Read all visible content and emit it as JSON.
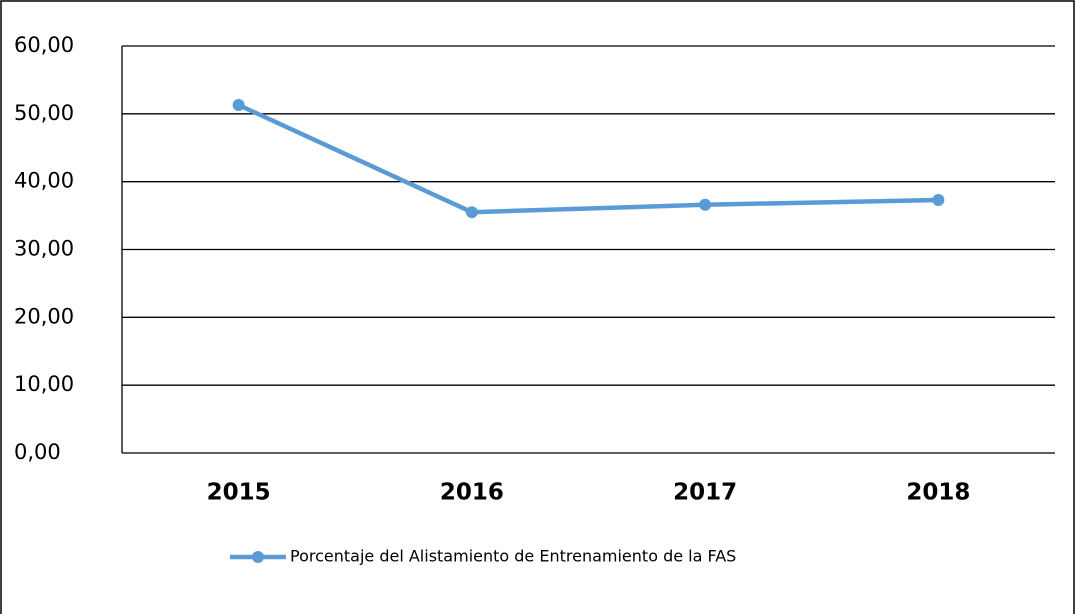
{
  "chart_data": {
    "type": "line",
    "categories": [
      "2015",
      "2016",
      "2017",
      "2018"
    ],
    "series": [
      {
        "name": "Porcentaje del Alistamiento de Entrenamiento de la FAS",
        "color": "#5b9bd5",
        "values": [
          51.3,
          35.5,
          36.6,
          37.3
        ]
      }
    ],
    "ylim": [
      0,
      60
    ],
    "yticks": [
      {
        "value": 0,
        "label": "0,00"
      },
      {
        "value": 10,
        "label": "10,00"
      },
      {
        "value": 20,
        "label": "20,00"
      },
      {
        "value": 30,
        "label": "30,00"
      },
      {
        "value": 40,
        "label": "40,00"
      },
      {
        "value": 50,
        "label": "50,00"
      },
      {
        "value": 60,
        "label": "60,00"
      }
    ],
    "grid": true,
    "legend": "bottom"
  }
}
